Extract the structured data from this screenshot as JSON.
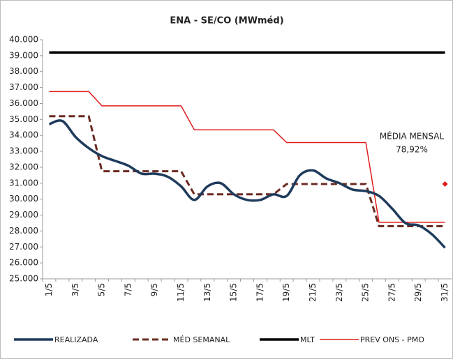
{
  "chart_data": {
    "type": "line",
    "title": "ENA - SE/CO (MWméd)",
    "categories": [
      "1/5",
      null,
      "3/5",
      null,
      "5/5",
      null,
      "7/5",
      null,
      "9/5",
      null,
      "11/5",
      null,
      "13/5",
      null,
      "15/5",
      null,
      "17/5",
      null,
      "19/5",
      null,
      "21/5",
      null,
      "23/5",
      null,
      "25/5",
      null,
      "27/5",
      null,
      "29/5",
      null,
      "31/5"
    ],
    "series": [
      {
        "name": "REALIZADA",
        "color": "#1f3b5c",
        "style": "smooth",
        "values": [
          34700,
          34900,
          33900,
          33200,
          32700,
          32400,
          32100,
          31600,
          31600,
          31400,
          30800,
          29950,
          30800,
          31000,
          30300,
          29950,
          29950,
          30300,
          30200,
          31500,
          31800,
          31300,
          31000,
          30600,
          30500,
          30200,
          29400,
          28500,
          28350,
          27800,
          26950
        ]
      },
      {
        "name": "MÉD SEMANAL",
        "color": "#6b2a22",
        "style": "dashed",
        "values": [
          35200,
          35200,
          35200,
          35200,
          31750,
          31750,
          31750,
          31750,
          31750,
          31750,
          31750,
          30300,
          30300,
          30300,
          30300,
          30300,
          30300,
          30300,
          30950,
          30950,
          30950,
          30950,
          30950,
          30950,
          30950,
          28300,
          28300,
          28300,
          28300,
          28300,
          28300
        ]
      },
      {
        "name": "MLT",
        "color": "#000000",
        "style": "thick",
        "values": [
          39200,
          39200,
          39200,
          39200,
          39200,
          39200,
          39200,
          39200,
          39200,
          39200,
          39200,
          39200,
          39200,
          39200,
          39200,
          39200,
          39200,
          39200,
          39200,
          39200,
          39200,
          39200,
          39200,
          39200,
          39200,
          39200,
          39200,
          39200,
          39200,
          39200,
          39200
        ]
      },
      {
        "name": "PREV ONS - PMO",
        "color": "#e01b1b",
        "style": "thin",
        "values": [
          36750,
          36750,
          36750,
          36750,
          35850,
          35850,
          35850,
          35850,
          35850,
          35850,
          35850,
          34350,
          34350,
          34350,
          34350,
          34350,
          34350,
          34350,
          33550,
          33550,
          33550,
          33550,
          33550,
          33550,
          33550,
          28550,
          28550,
          28550,
          28550,
          28550,
          28550
        ]
      }
    ],
    "ylim": [
      25000,
      40000
    ],
    "yticks": [
      {
        "value": 25000,
        "label": "25.000"
      },
      {
        "value": 26000,
        "label": "26.000"
      },
      {
        "value": 27000,
        "label": "27.000"
      },
      {
        "value": 28000,
        "label": "28.000"
      },
      {
        "value": 29000,
        "label": "29.000"
      },
      {
        "value": 30000,
        "label": "30.000"
      },
      {
        "value": 31000,
        "label": "31.000"
      },
      {
        "value": 32000,
        "label": "32.000"
      },
      {
        "value": 33000,
        "label": "33.000"
      },
      {
        "value": 34000,
        "label": "34.000"
      },
      {
        "value": 35000,
        "label": "35.000"
      },
      {
        "value": 36000,
        "label": "36.000"
      },
      {
        "value": 37000,
        "label": "37.000"
      },
      {
        "value": 38000,
        "label": "38.000"
      },
      {
        "value": 39000,
        "label": "39.000"
      },
      {
        "value": 40000,
        "label": "40.000"
      }
    ],
    "annotation": {
      "lines": [
        "MÉDIA MENSAL",
        "78,92%"
      ],
      "marker_at": "31/5",
      "value": 30950,
      "color": "#e01b1b"
    },
    "legend": "bottom"
  }
}
